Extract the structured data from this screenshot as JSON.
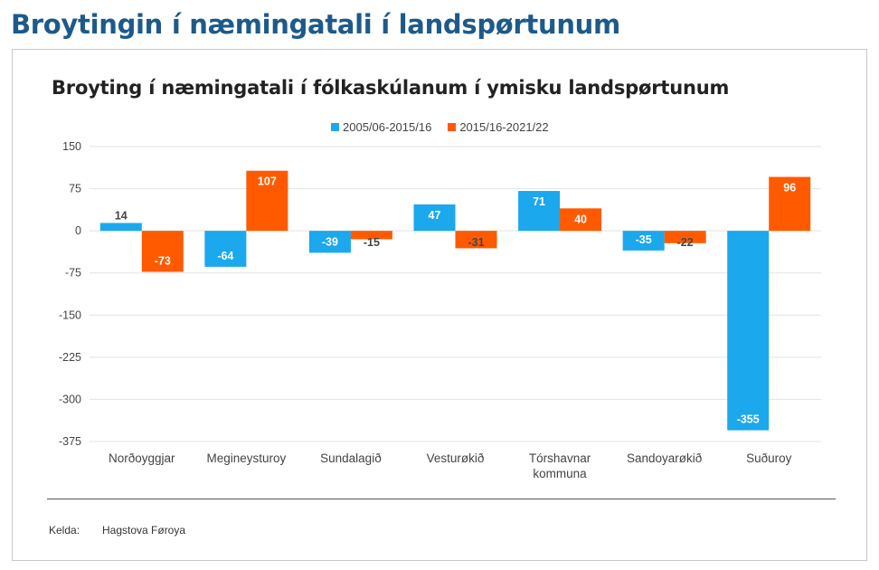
{
  "page": {
    "heading": "Broytingin í næmingatali í landspørtunum"
  },
  "chart_data": {
    "type": "bar",
    "title": "Broyting í næmingatali í fólkaskúlanum í ymisku landspørtunum",
    "categories": [
      "Norðoyggjar",
      "Megineysturoy",
      "Sundalagið",
      "Vesturøkið",
      "Tórshavnar kommuna",
      "Sandoyarøkið",
      "Suðuroy"
    ],
    "category_lines": [
      [
        "Norðoyggjar"
      ],
      [
        "Megineysturoy"
      ],
      [
        "Sundalagið"
      ],
      [
        "Vesturøkið"
      ],
      [
        "Tórshavnar",
        "kommuna"
      ],
      [
        "Sandoyarøkið"
      ],
      [
        "Suðuroy"
      ]
    ],
    "series": [
      {
        "name": "2005/06-2015/16",
        "color": "#1ba8ec",
        "values": [
          14,
          -64,
          -39,
          47,
          71,
          -35,
          -355
        ]
      },
      {
        "name": "2015/16-2021/22",
        "color": "#ff5a00",
        "values": [
          -73,
          107,
          -15,
          -31,
          40,
          -22,
          96
        ]
      }
    ],
    "ylim": [
      -375,
      150
    ],
    "yticks": [
      150,
      75,
      0,
      -75,
      -150,
      -225,
      -300,
      -375
    ],
    "grid": true,
    "legend": "top-center",
    "xlabel": "",
    "ylabel": ""
  },
  "footer": {
    "source_label": "Kelda:",
    "source_value": "Hagstova Føroya"
  }
}
